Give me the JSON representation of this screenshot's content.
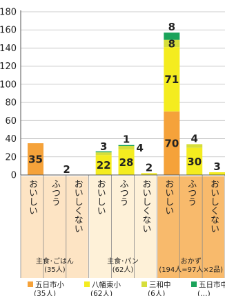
{
  "chart_data": {
    "type": "bar",
    "stacked": true,
    "title": "",
    "xlabel": "",
    "ylabel": "",
    "ylim": [
      0,
      180
    ],
    "yticks": [
      0,
      20,
      40,
      60,
      80,
      100,
      120,
      140,
      160,
      180
    ],
    "grid": true,
    "legend": "bottom",
    "categories": [
      "おいしい",
      "ふつう",
      "おいしくない",
      "おいしい",
      "ふつう",
      "おいしくない",
      "おいしい",
      "ふつう",
      "おいしくない"
    ],
    "groups": [
      {
        "label_line1": "主食･ごはん",
        "label_line2": "(35人)",
        "span": [
          0,
          2
        ],
        "color": "#fde4c4"
      },
      {
        "label_line1": "主食･パン",
        "label_line2": "(62人)",
        "span": [
          3,
          5
        ],
        "color": "#fef1d8"
      },
      {
        "label_line1": "おかず",
        "label_line2": "(194人=97人×2品)",
        "span": [
          6,
          8
        ],
        "color": "#f8ba6c"
      }
    ],
    "series": [
      {
        "name": "五日市小",
        "legend_sub": "(35人)",
        "color": "#f5a23a",
        "values": [
          35,
          0,
          0,
          0,
          0,
          0,
          70,
          0,
          0
        ]
      },
      {
        "name": "八幡東小",
        "legend_sub": "(62人)",
        "color": "#f4ec1f",
        "values": [
          0,
          0,
          0,
          22,
          28,
          2,
          71,
          30,
          3
        ]
      },
      {
        "name": "三和中",
        "legend_sub": "(6人)",
        "color": "#d6de3b",
        "values": [
          0,
          0,
          0,
          3,
          4,
          0,
          8,
          4,
          0
        ]
      },
      {
        "name": "五日市中",
        "legend_sub": "(…)",
        "color": "#1aa35a",
        "values": [
          0,
          0,
          0,
          1,
          1,
          0,
          8,
          0,
          0
        ]
      }
    ],
    "data_labels": [
      {
        "category": 0,
        "series": 0,
        "text": "35",
        "placement": "inside"
      },
      {
        "category": 2,
        "series": -1,
        "text": "2",
        "placement": "left"
      },
      {
        "category": 3,
        "series": 1,
        "text": "22",
        "placement": "inside"
      },
      {
        "category": 3,
        "series": 2,
        "text": "3",
        "placement": "above"
      },
      {
        "category": 4,
        "series": 1,
        "text": "28",
        "placement": "inside"
      },
      {
        "category": 4,
        "series": 3,
        "text": "1",
        "placement": "above"
      },
      {
        "category": 4,
        "series": 2,
        "text": "4",
        "placement": "right"
      },
      {
        "category": 5,
        "series": 1,
        "text": "2",
        "placement": "above"
      },
      {
        "category": 6,
        "series": 0,
        "text": "70",
        "placement": "inside"
      },
      {
        "category": 6,
        "series": 1,
        "text": "71",
        "placement": "inside"
      },
      {
        "category": 6,
        "series": 2,
        "text": "8",
        "placement": "inside"
      },
      {
        "category": 6,
        "series": 3,
        "text": "8",
        "placement": "above"
      },
      {
        "category": 7,
        "series": 1,
        "text": "30",
        "placement": "inside"
      },
      {
        "category": 7,
        "series": 2,
        "text": "4",
        "placement": "above"
      },
      {
        "category": 8,
        "series": 1,
        "text": "3",
        "placement": "above"
      }
    ]
  }
}
